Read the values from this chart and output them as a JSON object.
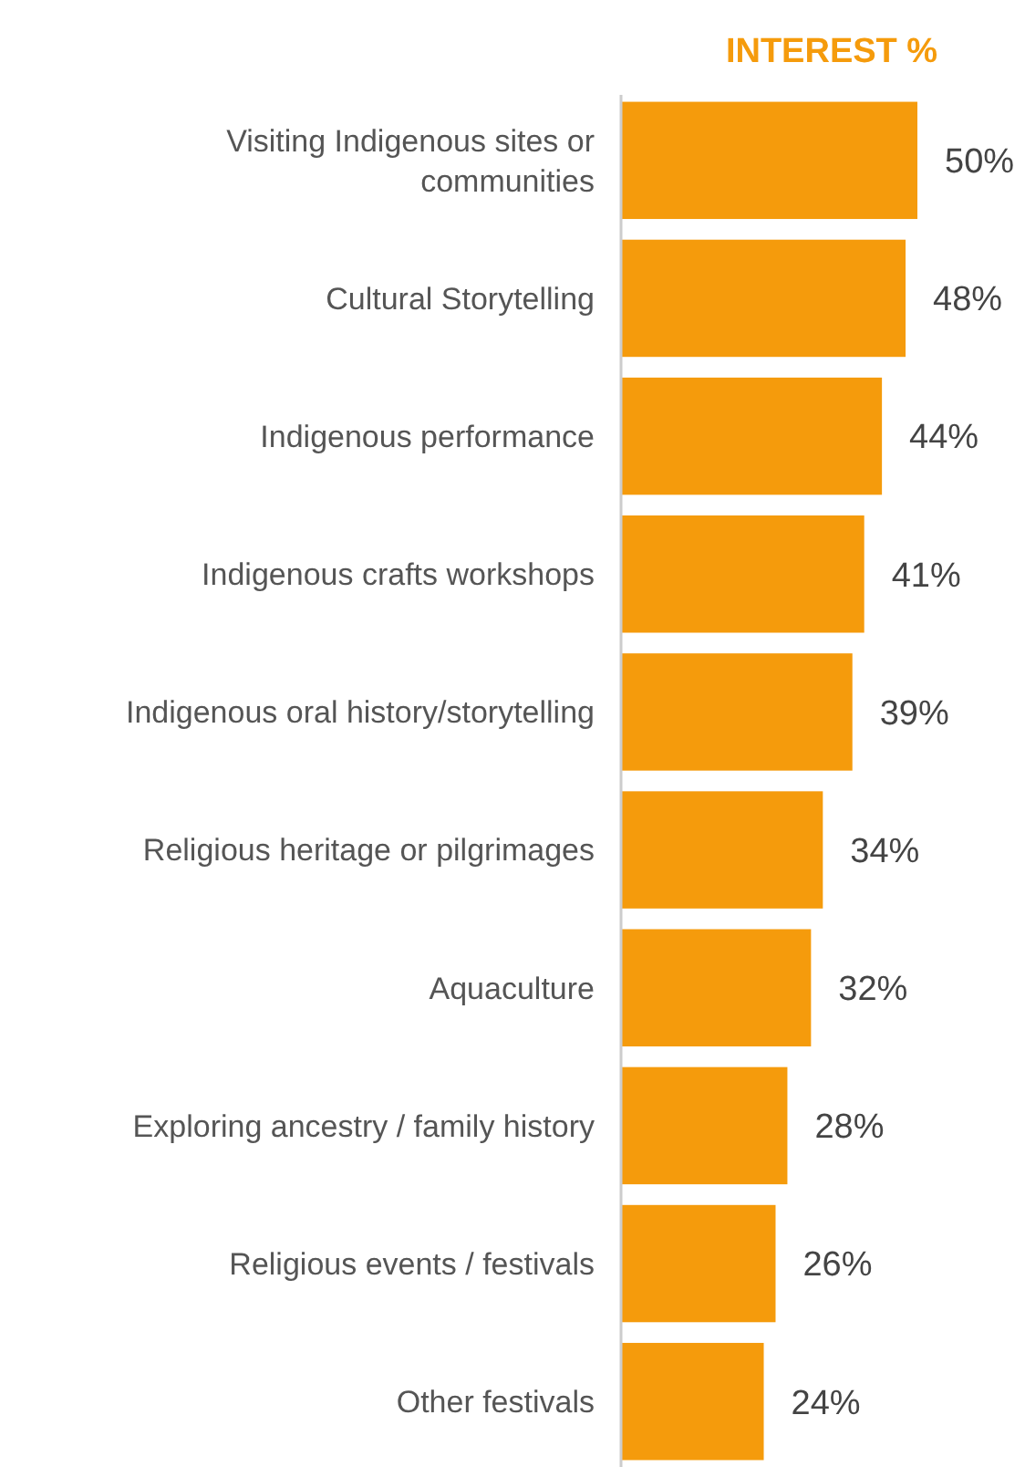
{
  "chart_data": {
    "type": "bar",
    "orientation": "horizontal",
    "title": "INTEREST %",
    "categories": [
      "Visiting Indigenous sites or communities",
      "Cultural Storytelling",
      "Indigenous performance",
      "Indigenous crafts workshops",
      "Indigenous oral history/storytelling",
      "Religious heritage or pilgrimages",
      "Aquaculture",
      "Exploring ancestry / family history",
      "Religious events / festivals",
      "Other festivals"
    ],
    "values": [
      50,
      48,
      44,
      41,
      39,
      34,
      32,
      28,
      26,
      24
    ],
    "value_labels": [
      "50%",
      "48%",
      "44%",
      "41%",
      "39%",
      "34%",
      "32%",
      "28%",
      "26%",
      "24%"
    ],
    "color": "#f59b0c"
  }
}
